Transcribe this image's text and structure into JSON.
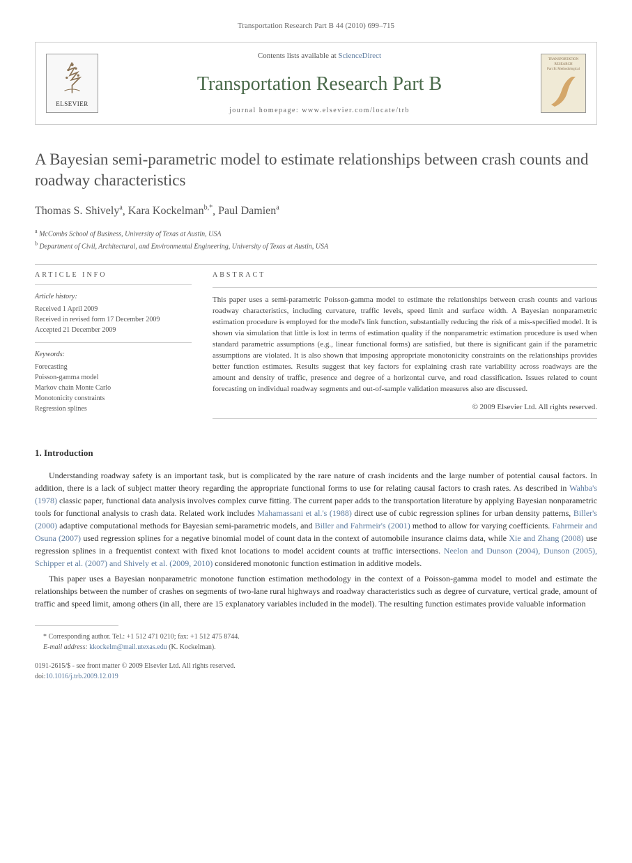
{
  "header_citation": "Transportation Research Part B 44 (2010) 699–715",
  "journal_box": {
    "elsevier_label": "ELSEVIER",
    "contents_prefix": "Contents lists available at ",
    "contents_link": "ScienceDirect",
    "journal_name": "Transportation Research Part B",
    "homepage_prefix": "journal homepage: ",
    "homepage_url": "www.elsevier.com/locate/trb",
    "cover_top": "TRANSPORTATION RESEARCH",
    "cover_sub": "Part B: Methodological"
  },
  "title": "A Bayesian semi-parametric model to estimate relationships between crash counts and roadway characteristics",
  "authors": [
    {
      "name": "Thomas S. Shively",
      "sup": "a"
    },
    {
      "name": "Kara Kockelman",
      "sup": "b,*"
    },
    {
      "name": "Paul Damien",
      "sup": "a"
    }
  ],
  "affiliations": [
    {
      "sup": "a",
      "text": "McCombs School of Business, University of Texas at Austin, USA"
    },
    {
      "sup": "b",
      "text": "Department of Civil, Architectural, and Environmental Engineering, University of Texas at Austin, USA"
    }
  ],
  "article_info": {
    "heading": "ARTICLE INFO",
    "history_heading": "Article history:",
    "history": [
      "Received 1 April 2009",
      "Received in revised form 17 December 2009",
      "Accepted 21 December 2009"
    ],
    "keywords_heading": "Keywords:",
    "keywords": [
      "Forecasting",
      "Poisson-gamma model",
      "Markov chain Monte Carlo",
      "Monotonicity constraints",
      "Regression splines"
    ]
  },
  "abstract": {
    "heading": "ABSTRACT",
    "text": "This paper uses a semi-parametric Poisson-gamma model to estimate the relationships between crash counts and various roadway characteristics, including curvature, traffic levels, speed limit and surface width. A Bayesian nonparametric estimation procedure is employed for the model's link function, substantially reducing the risk of a mis-specified model. It is shown via simulation that little is lost in terms of estimation quality if the nonparametric estimation procedure is used when standard parametric assumptions (e.g., linear functional forms) are satisfied, but there is significant gain if the parametric assumptions are violated. It is also shown that imposing appropriate monotonicity constraints on the relationships provides better function estimates. Results suggest that key factors for explaining crash rate variability across roadways are the amount and density of traffic, presence and degree of a horizontal curve, and road classification. Issues related to count forecasting on individual roadway segments and out-of-sample validation measures also are discussed.",
    "copyright": "© 2009 Elsevier Ltd. All rights reserved."
  },
  "sections": {
    "intro_heading": "1. Introduction",
    "intro_p1_parts": [
      {
        "t": "text",
        "v": "Understanding roadway safety is an important task, but is complicated by the rare nature of crash incidents and the large number of potential causal factors. In addition, there is a lack of subject matter theory regarding the appropriate functional forms to use for relating causal factors to crash rates. As described in "
      },
      {
        "t": "link",
        "v": "Wahba's (1978)"
      },
      {
        "t": "text",
        "v": " classic paper, functional data analysis involves complex curve fitting. The current paper adds to the transportation literature by applying Bayesian nonparametric tools for functional analysis to crash data. Related work includes "
      },
      {
        "t": "link",
        "v": "Mahamassani et al.'s (1988)"
      },
      {
        "t": "text",
        "v": " direct use of cubic regression splines for urban density patterns, "
      },
      {
        "t": "link",
        "v": "Biller's (2000)"
      },
      {
        "t": "text",
        "v": " adaptive computational methods for Bayesian semi-parametric models, and "
      },
      {
        "t": "link",
        "v": "Biller and Fahrmeir's (2001)"
      },
      {
        "t": "text",
        "v": " method to allow for varying coefficients. "
      },
      {
        "t": "link",
        "v": "Fahrmeir and Osuna (2007)"
      },
      {
        "t": "text",
        "v": " used regression splines for a negative binomial model of count data in the context of automobile insurance claims data, while "
      },
      {
        "t": "link",
        "v": "Xie and Zhang (2008)"
      },
      {
        "t": "text",
        "v": " use regression splines in a frequentist context with fixed knot locations to model accident counts at traffic intersections. "
      },
      {
        "t": "link",
        "v": "Neelon and Dunson (2004), Dunson (2005), Schipper et al. (2007) and Shively et al. (2009, 2010)"
      },
      {
        "t": "text",
        "v": " considered monotonic function estimation in additive models."
      }
    ],
    "intro_p2": "This paper uses a Bayesian nonparametric monotone function estimation methodology in the context of a Poisson-gamma model to model and estimate the relationships between the number of crashes on segments of two-lane rural highways and roadway characteristics such as degree of curvature, vertical grade, amount of traffic and speed limit, among others (in all, there are 15 explanatory variables included in the model). The resulting function estimates provide valuable information"
  },
  "footnote": {
    "corr_label": "* Corresponding author. Tel.: +1 512 471 0210; fax: +1 512 475 8744.",
    "email_label": "E-mail address:",
    "email": "kkockelm@mail.utexas.edu",
    "email_name": "(K. Kockelman)."
  },
  "footer": {
    "issn_line": "0191-2615/$ - see front matter © 2009 Elsevier Ltd. All rights reserved.",
    "doi_prefix": "doi:",
    "doi": "10.1016/j.trb.2009.12.019"
  },
  "style": {
    "link_color": "#5b7a9e",
    "journal_green": "#4a6a4a",
    "text_color": "#333333",
    "muted_color": "#666666"
  }
}
